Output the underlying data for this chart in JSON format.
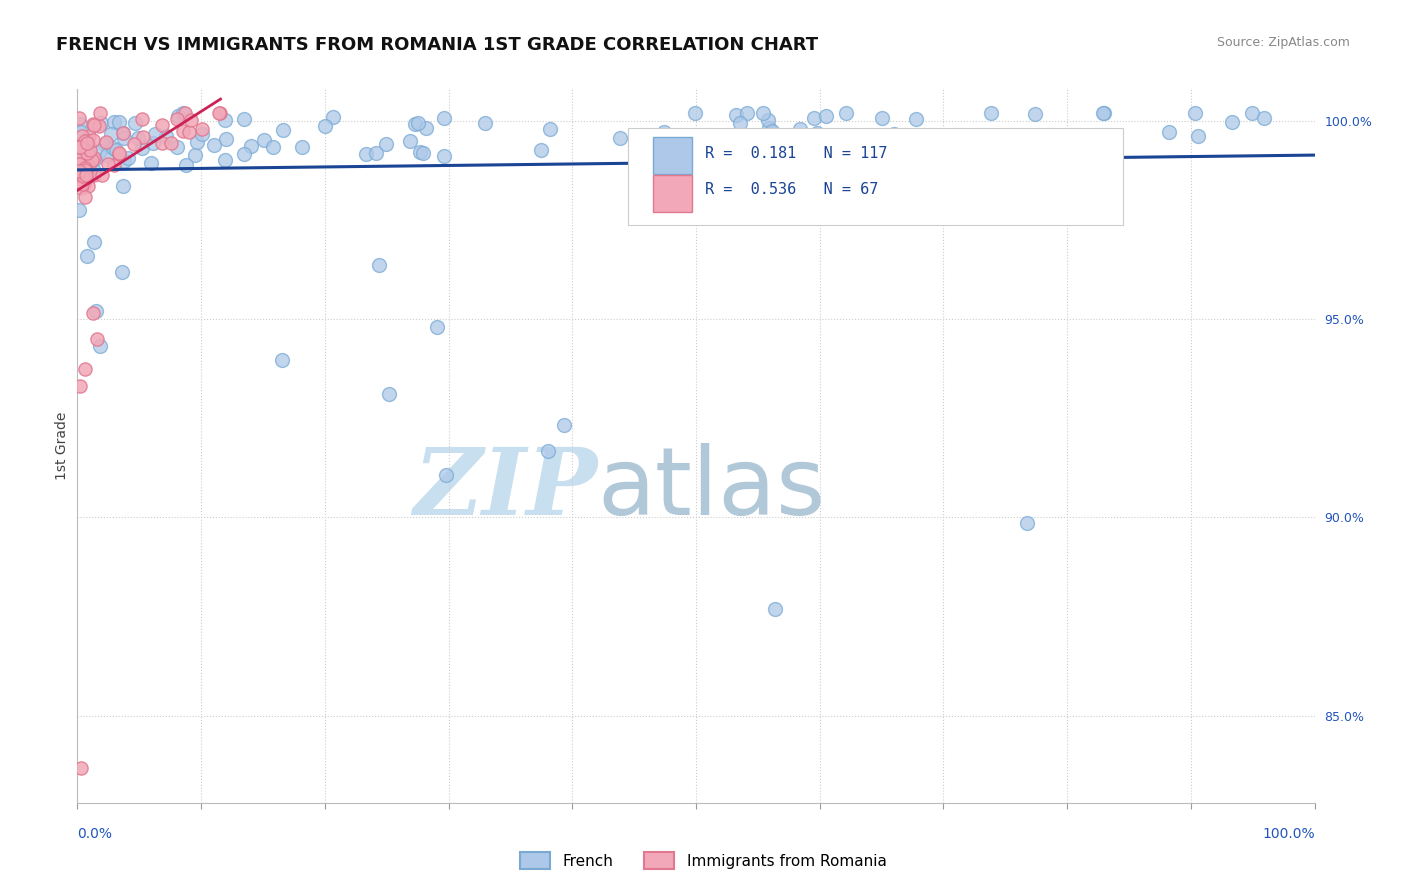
{
  "title": "FRENCH VS IMMIGRANTS FROM ROMANIA 1ST GRADE CORRELATION CHART",
  "source_text": "Source: ZipAtlas.com",
  "ylabel": "1st Grade",
  "yticks": [
    0.85,
    0.9,
    0.95,
    1.0
  ],
  "ytick_labels": [
    "85.0%",
    "90.0%",
    "95.0%",
    "100.0%"
  ],
  "xlim": [
    0.0,
    1.0
  ],
  "ylim": [
    0.828,
    1.008
  ],
  "legend_french": "French",
  "legend_romania": "Immigrants from Romania",
  "blue_R": 0.181,
  "blue_N": 117,
  "pink_R": 0.536,
  "pink_N": 67,
  "blue_color": "#adc8e8",
  "pink_color": "#f2a8b8",
  "blue_edge": "#7aaad4",
  "pink_edge": "#e07890",
  "trend_color": "#1a4494",
  "trend_pink_color": "#cc2255",
  "watermark_zip_color": "#c8dff0",
  "watermark_atlas_color": "#b0c8d8",
  "background_color": "#ffffff",
  "grid_color": "#cccccc",
  "title_color": "#111111",
  "source_color": "#888888",
  "ytick_color": "#2255bb",
  "title_fontsize": 13,
  "axis_label_fontsize": 9,
  "legend_fontsize": 11,
  "marker_size_blue": 100,
  "marker_size_pink": 90,
  "seed": 42
}
